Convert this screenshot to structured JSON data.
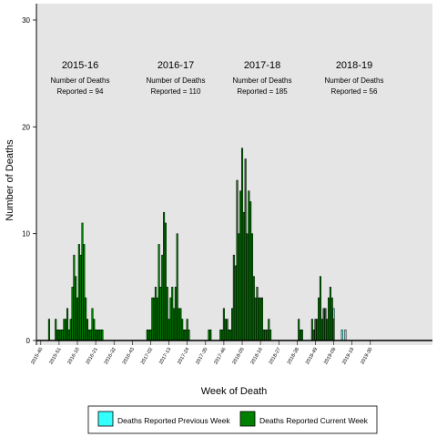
{
  "chart_data": {
    "type": "bar",
    "stacked": true,
    "xlabel": "Week of Death",
    "ylabel": "Number of Deaths",
    "ylim": [
      0,
      31
    ],
    "y_ticks": [
      0,
      10,
      20,
      30
    ],
    "grid": false,
    "background": "#e5e5e5",
    "x_ticks": [
      "2015-40",
      "2015-51",
      "2016-10",
      "2016-21",
      "2016-32",
      "2016-43",
      "2017-02",
      "2017-13",
      "2017-24",
      "2017-35",
      "2017-46",
      "2018-05",
      "2018-16",
      "2018-27",
      "2018-38",
      "2018-49",
      "2019-08",
      "2019-19",
      "2019-30"
    ],
    "seasons": [
      {
        "title": "2015-16",
        "line1": "Number of Deaths",
        "line2": "Reported = 94"
      },
      {
        "title": "2016-17",
        "line1": "Number of Deaths",
        "line2": "Reported = 110"
      },
      {
        "title": "2017-18",
        "line1": "Number of Deaths",
        "line2": "Reported = 185"
      },
      {
        "title": "2018-19",
        "line1": "Number of Deaths",
        "line2": "Reported = 56"
      }
    ],
    "legend_position": "bottom",
    "series": [
      {
        "name": "Deaths Reported Previous Week",
        "color": "#33ffff",
        "values": [
          0,
          0,
          0,
          0,
          0,
          0,
          0,
          0,
          0,
          0,
          0,
          0,
          0,
          0,
          0,
          0,
          0,
          0,
          0,
          0,
          0,
          0,
          0,
          0,
          0,
          0,
          0,
          0,
          0,
          0,
          0,
          0,
          0,
          0,
          0,
          0,
          0,
          0,
          0,
          0,
          0,
          0,
          0,
          0,
          0,
          0,
          0,
          0,
          0,
          0,
          0,
          0,
          0,
          0,
          0,
          0,
          0,
          0,
          0,
          0,
          0,
          0,
          0,
          0,
          0,
          0,
          0,
          0,
          0,
          0,
          0,
          0,
          0,
          0,
          0,
          0,
          0,
          0,
          0,
          0,
          0,
          0,
          0,
          0,
          0,
          0,
          0,
          0,
          0,
          0,
          0,
          0,
          0,
          0,
          0,
          0,
          0,
          0,
          0,
          0,
          0,
          0,
          0,
          0,
          0,
          0,
          0,
          0,
          0,
          0,
          0,
          0,
          0,
          0,
          0,
          0,
          0,
          0,
          0,
          0,
          0,
          0,
          0,
          0,
          0,
          0,
          0,
          0,
          0,
          0,
          0,
          0,
          0,
          0,
          0,
          0,
          0,
          0,
          0,
          0,
          0,
          0,
          0,
          0,
          0,
          0,
          0,
          0,
          0,
          0,
          0,
          0,
          0,
          0,
          0,
          0,
          0,
          0,
          0,
          0,
          0,
          0,
          0,
          0,
          0,
          0,
          0,
          0,
          0,
          0,
          0,
          0,
          0,
          0,
          0,
          0,
          1,
          0,
          0,
          0,
          0,
          1,
          0,
          1,
          0,
          0,
          0,
          0,
          0,
          0,
          0,
          0,
          0,
          0,
          0,
          0,
          0,
          0,
          0,
          0,
          0,
          0,
          0,
          0,
          0,
          0,
          0,
          0,
          0,
          0,
          0,
          0,
          0,
          0,
          0,
          0,
          0,
          0,
          0,
          0,
          0,
          0,
          0,
          0,
          0,
          0,
          0,
          0,
          0,
          0,
          0,
          0,
          0
        ]
      },
      {
        "name": "Deaths Reported Current Week",
        "color": "#008000",
        "values": [
          0,
          0,
          0,
          0,
          0,
          2,
          0,
          0,
          0,
          2,
          1,
          1,
          1,
          1,
          2,
          2,
          3,
          1,
          2,
          5,
          8,
          6,
          4,
          9,
          8,
          11,
          9,
          4,
          2,
          1,
          1,
          3,
          2,
          1,
          1,
          1,
          1,
          1,
          0,
          0,
          0,
          0,
          0,
          0,
          0,
          0,
          0,
          0,
          0,
          0,
          0,
          0,
          0,
          0,
          0,
          0,
          0,
          0,
          0,
          0,
          0,
          0,
          0,
          0,
          1,
          1,
          1,
          4,
          4,
          5,
          4,
          9,
          5,
          8,
          12,
          11,
          5,
          2,
          4,
          5,
          3,
          5,
          10,
          3,
          3,
          2,
          1,
          1,
          2,
          1,
          0,
          0,
          0,
          0,
          0,
          0,
          0,
          0,
          0,
          0,
          0,
          1,
          1,
          0,
          0,
          0,
          0,
          0,
          1,
          1,
          3,
          2,
          2,
          1,
          1,
          3,
          8,
          7,
          15,
          10,
          14,
          18,
          12,
          17,
          10,
          14,
          13,
          10,
          6,
          4,
          5,
          4,
          4,
          4,
          1,
          1,
          1,
          2,
          1,
          0,
          0,
          0,
          0,
          0,
          0,
          0,
          0,
          0,
          0,
          0,
          0,
          0,
          0,
          0,
          0,
          2,
          1,
          1,
          0,
          0,
          0,
          0,
          0,
          2,
          1,
          2,
          2,
          4,
          6,
          2,
          3,
          3,
          2,
          4,
          5,
          4,
          2,
          0,
          0,
          0,
          0,
          0,
          0,
          0,
          0,
          0,
          0,
          0,
          0,
          0,
          0,
          0,
          0,
          0,
          0,
          0,
          0,
          0,
          0,
          0,
          0,
          0,
          0,
          0,
          0,
          0,
          0,
          0,
          0,
          0,
          0,
          0,
          0,
          0,
          0,
          0,
          0,
          0,
          0,
          0,
          0,
          0,
          0
        ]
      }
    ]
  }
}
